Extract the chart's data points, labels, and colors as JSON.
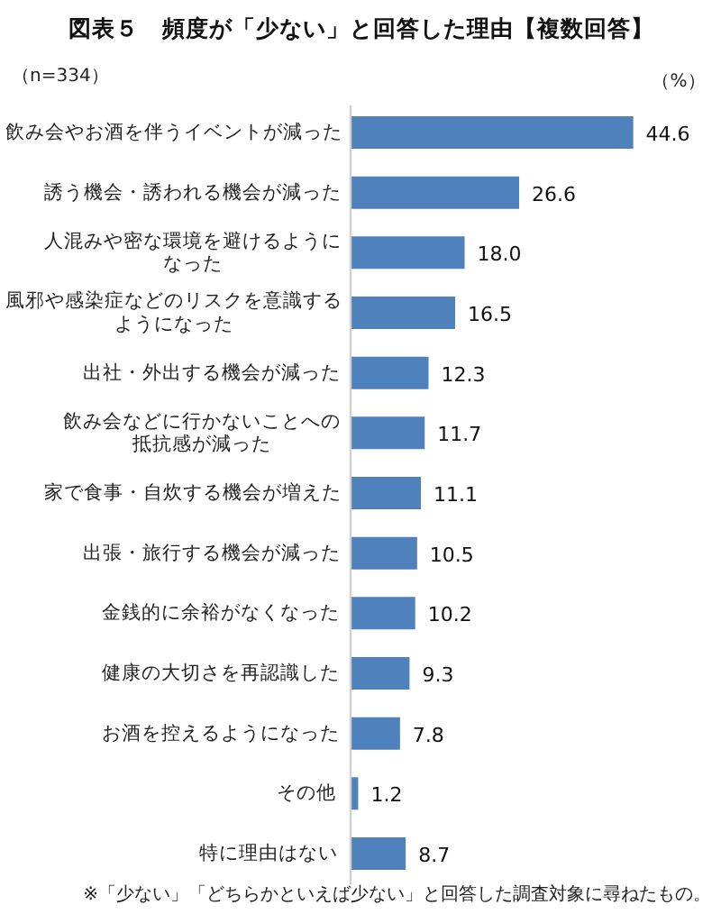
{
  "chart_data": {
    "type": "bar",
    "orientation": "horizontal",
    "title": "図表５　頻度が「少ない」と回答した理由【複数回答】",
    "subtitle": "（n=334）",
    "xlabel": "（%）",
    "categories": [
      "飲み会やお酒を伴うイベントが減った",
      "誘う機会・誘われる機会が減った",
      "人混みや密な環境を避けるようになった",
      "風邪や感染症などのリスクを意識するようになった",
      "出社・外出する機会が減った",
      "飲み会などに行かないことへの抵抗感が減った",
      "家で食事・自炊する機会が増えた",
      "出張・旅行する機会が減った",
      "金銭的に余裕がなくなった",
      "健康の大切さを再認識した",
      "お酒を控えるようになった",
      "その他",
      "特に理由はない"
    ],
    "values": [
      44.6,
      26.6,
      18.0,
      16.5,
      12.3,
      11.7,
      11.1,
      10.5,
      10.2,
      9.3,
      7.8,
      1.2,
      8.7
    ],
    "value_labels": [
      "44.6",
      "26.6",
      "18.0",
      "16.5",
      "12.3",
      "11.7",
      "11.1",
      "10.5",
      "10.2",
      "9.3",
      "7.8",
      "1.2",
      "8.7"
    ],
    "color": "#4f81bd",
    "annotations": [
      "※「少ない」「どちらかといえば少ない」と回答した調査対象に尋ねたもの。"
    ]
  }
}
